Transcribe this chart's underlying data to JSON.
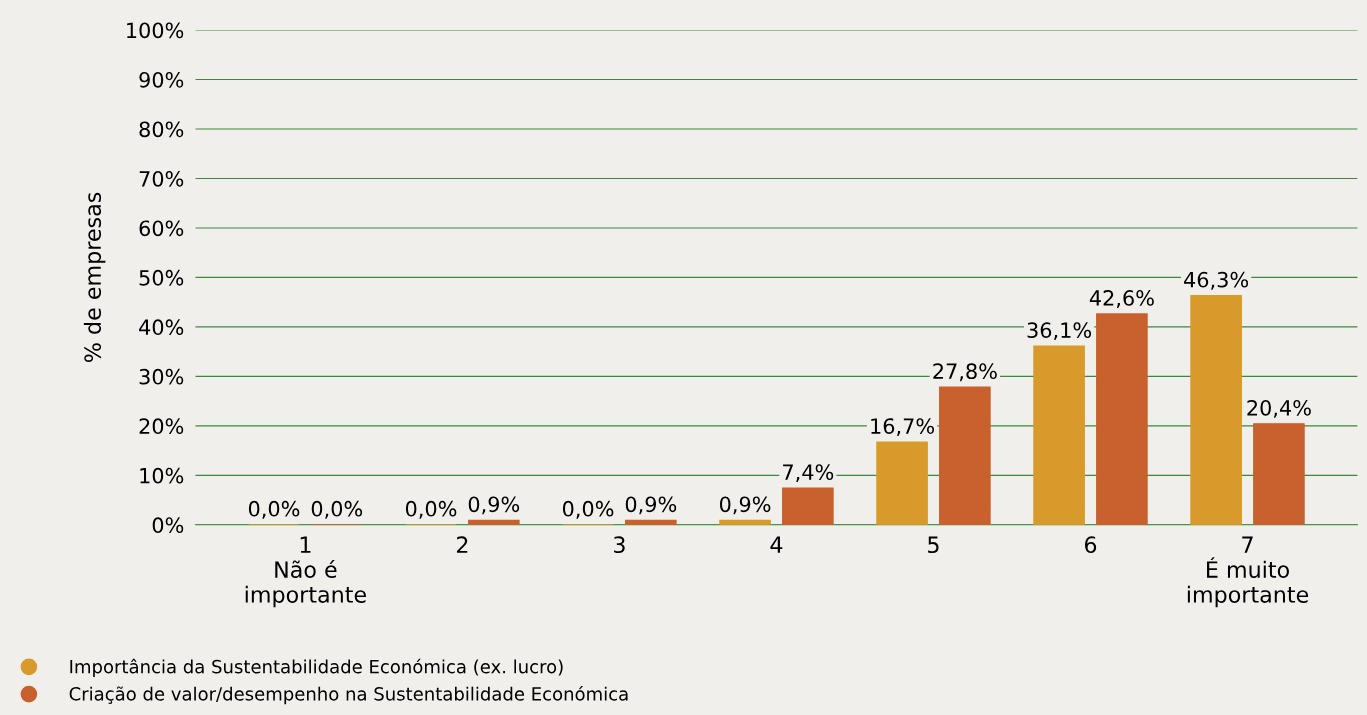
{
  "chart_data": {
    "type": "bar",
    "ylabel": "% de empresas",
    "categories": [
      "1\nNão é\nimportante",
      "2",
      "3",
      "4",
      "5",
      "6",
      "7\nÉ muito\nimportante"
    ],
    "series": [
      {
        "name": "Importância da Sustentabilidade Económica (ex. lucro)",
        "color": "#d89b2b",
        "values": [
          0.0,
          0.0,
          0.0,
          0.9,
          16.7,
          36.1,
          46.3
        ],
        "value_labels": [
          "0,0%",
          "0,0%",
          "0,0%",
          "0,9%",
          "16,7%",
          "36,1%",
          "46,3%"
        ]
      },
      {
        "name": "Criação de valor/desempenho na Sustentabilidade Económica",
        "color": "#c8612d",
        "values": [
          0.0,
          0.9,
          0.9,
          7.4,
          27.8,
          42.6,
          20.4
        ],
        "value_labels": [
          "0,0%",
          "0,9%",
          "0,9%",
          "7,4%",
          "27,8%",
          "42,6%",
          "20,4%"
        ]
      }
    ],
    "ylim": [
      0,
      100
    ],
    "yticks": [
      {
        "value": 0,
        "label": "0%"
      },
      {
        "value": 10,
        "label": "10%"
      },
      {
        "value": 20,
        "label": "20%"
      },
      {
        "value": 30,
        "label": "30%"
      },
      {
        "value": 40,
        "label": "40%"
      },
      {
        "value": 50,
        "label": "50%"
      },
      {
        "value": 60,
        "label": "60%"
      },
      {
        "value": 70,
        "label": "70%"
      },
      {
        "value": 80,
        "label": "80%"
      },
      {
        "value": 90,
        "label": "90%"
      },
      {
        "value": 100,
        "label": "100%"
      }
    ],
    "grid": "y",
    "legend": "bottom left"
  }
}
